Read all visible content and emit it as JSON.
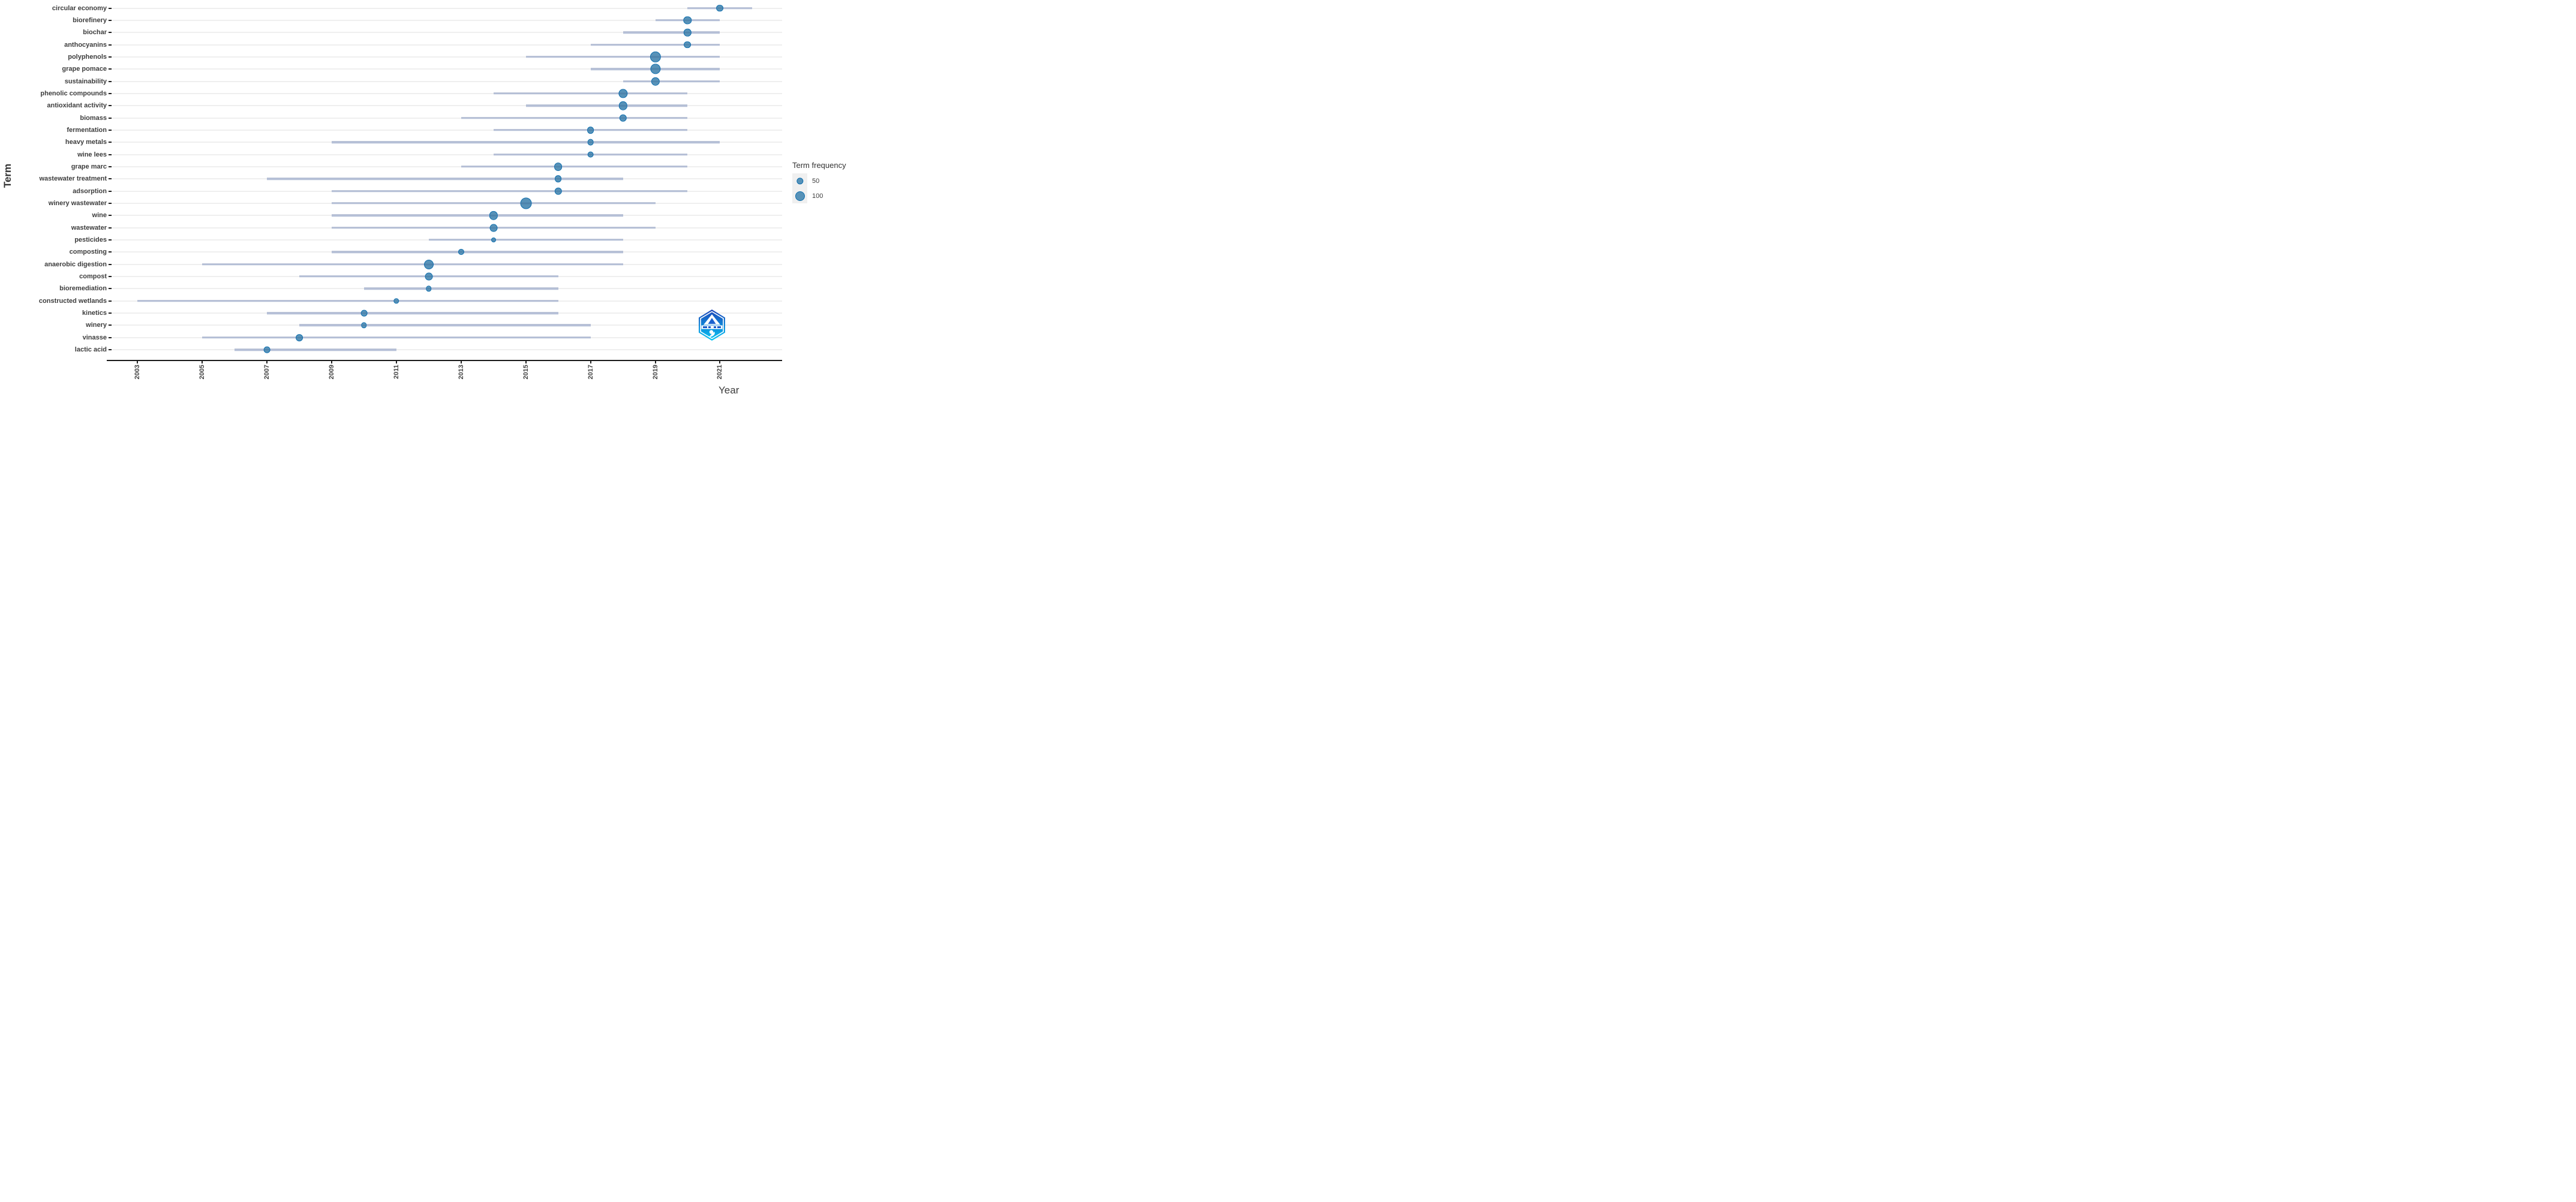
{
  "axes": {
    "x_title": "Year",
    "y_title": "Term"
  },
  "legend": {
    "title": "Term frequency",
    "items": [
      {
        "label": "50",
        "frequency": 50
      },
      {
        "label": "100",
        "frequency": 100
      }
    ]
  },
  "colors": {
    "dot_fill": "#5792b8",
    "dot_border": "#0e6eae",
    "range_line": "#b7c1d8",
    "gridline": "#efefef",
    "axis": "#1a1a1a",
    "logo_top": "#1d44b8",
    "logo_bottom": "#06c7f5"
  },
  "chart_data": {
    "type": "scatter",
    "subtype": "bubble-timeline-dotplot",
    "title": "",
    "xlabel": "Year",
    "ylabel": "Term",
    "xlim": [
      2002,
      2023
    ],
    "x_ticks": [
      2003,
      2005,
      2007,
      2009,
      2011,
      2013,
      2015,
      2017,
      2019,
      2021
    ],
    "grid": "horizontal-only",
    "legend_position": "right",
    "legend_title": "Term frequency",
    "legend_breaks": [
      50,
      100
    ],
    "terms": [
      {
        "label": "circular economy",
        "start": 2020,
        "end": 2022,
        "peak": 2021,
        "frequency": 55
      },
      {
        "label": "biorefinery",
        "start": 2019,
        "end": 2021,
        "peak": 2020,
        "frequency": 70
      },
      {
        "label": "biochar",
        "start": 2018,
        "end": 2021,
        "peak": 2020,
        "frequency": 60
      },
      {
        "label": "anthocyanins",
        "start": 2017,
        "end": 2021,
        "peak": 2020,
        "frequency": 55
      },
      {
        "label": "polyphenols",
        "start": 2015,
        "end": 2021,
        "peak": 2019,
        "frequency": 130
      },
      {
        "label": "grape pomace",
        "start": 2017,
        "end": 2021,
        "peak": 2019,
        "frequency": 115
      },
      {
        "label": "sustainability",
        "start": 2018,
        "end": 2021,
        "peak": 2019,
        "frequency": 80
      },
      {
        "label": "phenolic compounds",
        "start": 2014,
        "end": 2020,
        "peak": 2018,
        "frequency": 90
      },
      {
        "label": "antioxidant activity",
        "start": 2015,
        "end": 2020,
        "peak": 2018,
        "frequency": 80
      },
      {
        "label": "biomass",
        "start": 2013,
        "end": 2020,
        "peak": 2018,
        "frequency": 60
      },
      {
        "label": "fermentation",
        "start": 2014,
        "end": 2020,
        "peak": 2017,
        "frequency": 55
      },
      {
        "label": "heavy metals",
        "start": 2009,
        "end": 2021,
        "peak": 2017,
        "frequency": 45
      },
      {
        "label": "wine lees",
        "start": 2014,
        "end": 2020,
        "peak": 2017,
        "frequency": 45
      },
      {
        "label": "grape marc",
        "start": 2013,
        "end": 2020,
        "peak": 2016,
        "frequency": 75
      },
      {
        "label": "wastewater treatment",
        "start": 2007,
        "end": 2018,
        "peak": 2016,
        "frequency": 55
      },
      {
        "label": "adsorption",
        "start": 2009,
        "end": 2020,
        "peak": 2016,
        "frequency": 60
      },
      {
        "label": "winery wastewater",
        "start": 2009,
        "end": 2019,
        "peak": 2015,
        "frequency": 140
      },
      {
        "label": "wine",
        "start": 2009,
        "end": 2018,
        "peak": 2014,
        "frequency": 80
      },
      {
        "label": "wastewater",
        "start": 2009,
        "end": 2019,
        "peak": 2014,
        "frequency": 65
      },
      {
        "label": "pesticides",
        "start": 2012,
        "end": 2018,
        "peak": 2014,
        "frequency": 25
      },
      {
        "label": "composting",
        "start": 2009,
        "end": 2018,
        "peak": 2013,
        "frequency": 40
      },
      {
        "label": "anaerobic digestion",
        "start": 2005,
        "end": 2018,
        "peak": 2012,
        "frequency": 100
      },
      {
        "label": "compost",
        "start": 2008,
        "end": 2016,
        "peak": 2012,
        "frequency": 65
      },
      {
        "label": "bioremediation",
        "start": 2010,
        "end": 2016,
        "peak": 2012,
        "frequency": 35
      },
      {
        "label": "constructed wetlands",
        "start": 2003,
        "end": 2016,
        "peak": 2011,
        "frequency": 35
      },
      {
        "label": "kinetics",
        "start": 2007,
        "end": 2016,
        "peak": 2010,
        "frequency": 45
      },
      {
        "label": "winery",
        "start": 2008,
        "end": 2017,
        "peak": 2010,
        "frequency": 35
      },
      {
        "label": "vinasse",
        "start": 2005,
        "end": 2017,
        "peak": 2008,
        "frequency": 55
      },
      {
        "label": "lactic acid",
        "start": 2006,
        "end": 2011,
        "peak": 2007,
        "frequency": 45
      }
    ]
  }
}
